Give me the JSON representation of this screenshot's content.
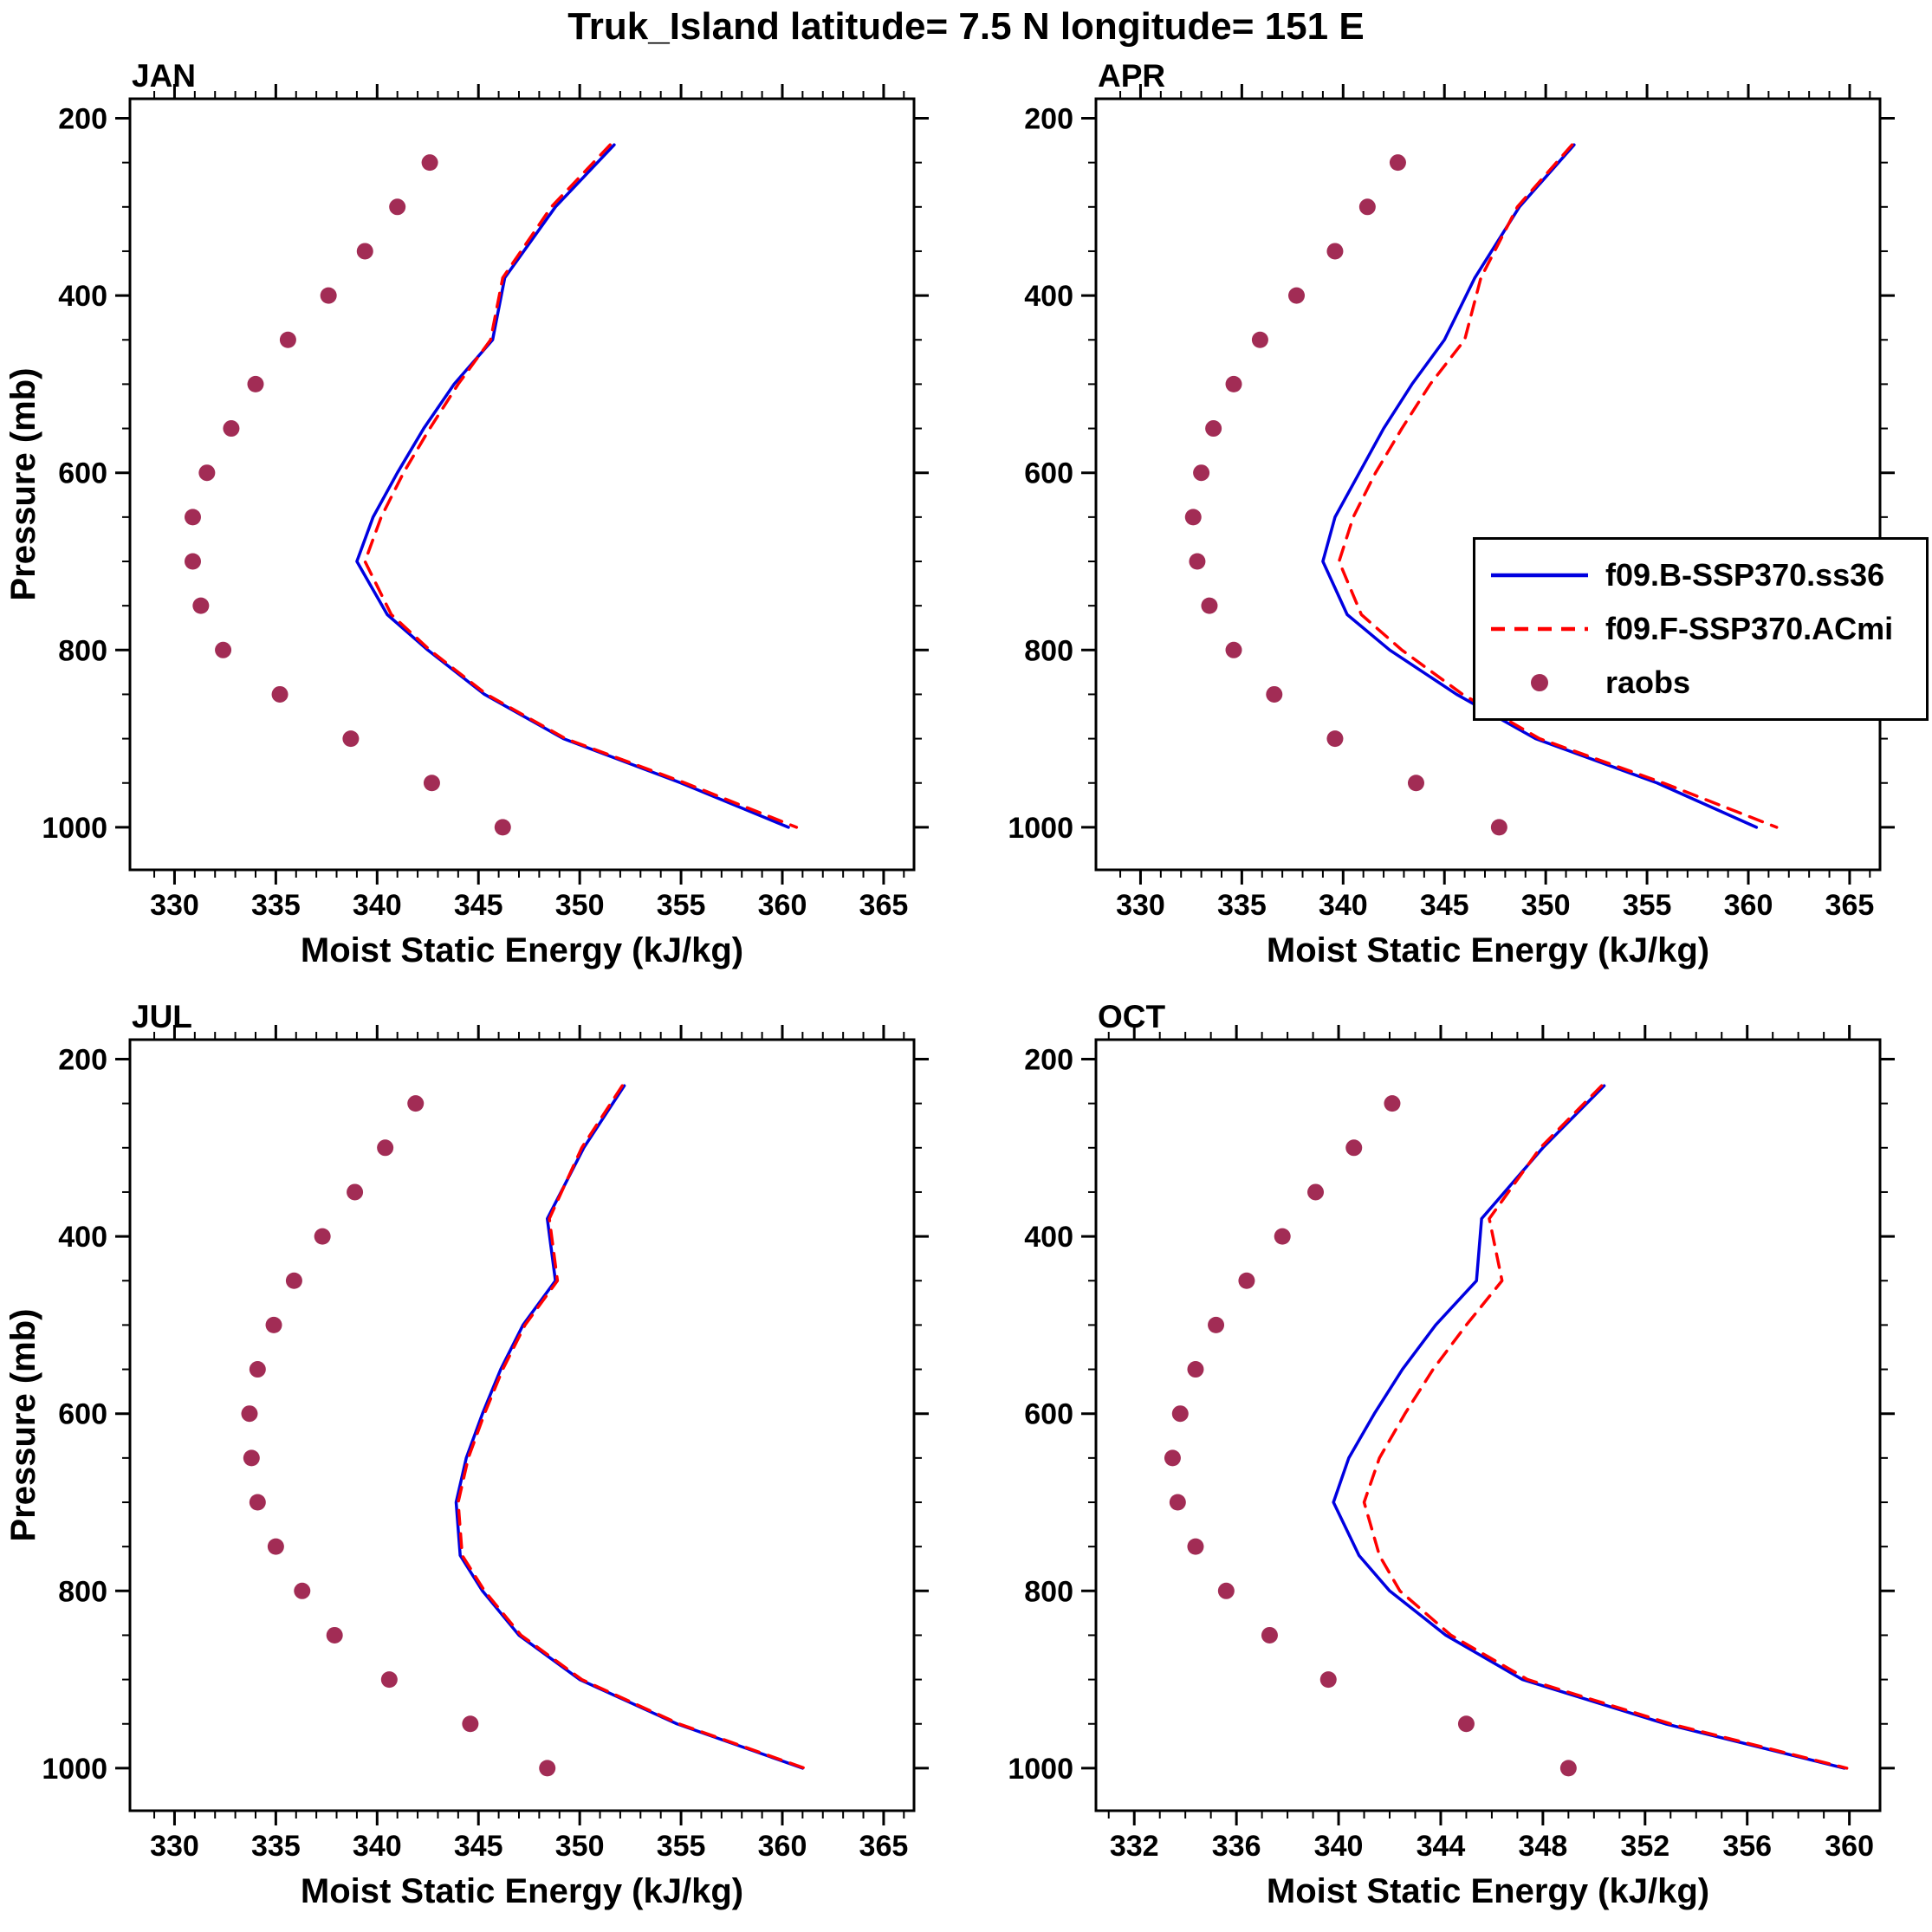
{
  "title": "Truk_Island  latitude= 7.5 N longitude= 151 E",
  "colors": {
    "model_b": "#0000E0",
    "model_f": "#FF0000",
    "raobs": "#A22C55",
    "axis": "#000000"
  },
  "axes": {
    "xlabel": "Moist Static Energy (kJ/kg)",
    "ylabel": "Pressure (mb)"
  },
  "legend": {
    "items": [
      {
        "label": "f09.B-SSP370.ss36",
        "marker": "line-solid",
        "color": "#0000E0"
      },
      {
        "label": "f09.F-SSP370.ACmi",
        "marker": "line-dashed",
        "color": "#FF0000"
      },
      {
        "label": "raobs",
        "marker": "dot",
        "color": "#A22C55"
      }
    ]
  },
  "chart_data": [
    {
      "type": "line",
      "label": "JAN",
      "xlabel": "Moist Static Energy (kJ/kg)",
      "ylabel": "Pressure (mb)",
      "show_ylabel": true,
      "xlim": [
        327.8,
        366.5
      ],
      "xticks": [
        330,
        335,
        340,
        345,
        350,
        355,
        360,
        365
      ],
      "x_minor_step": 1,
      "ylim": [
        178,
        1048
      ],
      "yticks": [
        200,
        400,
        600,
        800,
        1000
      ],
      "y_minor_step": 50,
      "pressure_levels": [
        230,
        300,
        380,
        450,
        500,
        550,
        600,
        650,
        700,
        760,
        800,
        850,
        900,
        950,
        1000
      ],
      "series": [
        {
          "name": "f09.B-SSP370.ss36",
          "style": "solid",
          "color": "#0000E0",
          "values": [
            351.7,
            348.8,
            346.3,
            345.7,
            343.8,
            342.3,
            341.0,
            339.8,
            339.0,
            340.5,
            342.5,
            345.3,
            349.2,
            355.0,
            360.3
          ]
        },
        {
          "name": "f09.F-SSP370.ACmi",
          "style": "dashed",
          "color": "#FF0000",
          "values": [
            351.5,
            348.6,
            346.2,
            345.6,
            344.0,
            342.6,
            341.3,
            340.2,
            339.4,
            340.7,
            342.6,
            345.4,
            349.3,
            355.2,
            360.7
          ]
        }
      ],
      "raobs": {
        "name": "raobs",
        "color": "#A22C55",
        "pressure": [
          250,
          300,
          350,
          400,
          450,
          500,
          550,
          600,
          650,
          700,
          750,
          800,
          850,
          900,
          950,
          1000
        ],
        "values": [
          342.6,
          341.0,
          339.4,
          337.6,
          335.6,
          334.0,
          332.8,
          331.6,
          330.9,
          330.9,
          331.3,
          332.4,
          335.2,
          338.7,
          342.7,
          346.2
        ]
      }
    },
    {
      "type": "line",
      "label": "APR",
      "xlabel": "Moist Static Energy (kJ/kg)",
      "ylabel": "Pressure (mb)",
      "show_ylabel": false,
      "xlim": [
        327.8,
        366.5
      ],
      "xticks": [
        330,
        335,
        340,
        345,
        350,
        355,
        360,
        365
      ],
      "x_minor_step": 1,
      "ylim": [
        178,
        1048
      ],
      "yticks": [
        200,
        400,
        600,
        800,
        1000
      ],
      "y_minor_step": 50,
      "pressure_levels": [
        230,
        300,
        380,
        450,
        500,
        550,
        600,
        650,
        700,
        760,
        800,
        850,
        900,
        950,
        1000
      ],
      "series": [
        {
          "name": "f09.B-SSP370.ss36",
          "style": "solid",
          "color": "#0000E0",
          "values": [
            351.4,
            348.7,
            346.5,
            345.0,
            343.4,
            342.0,
            340.8,
            339.6,
            339.0,
            340.2,
            342.3,
            345.6,
            349.5,
            355.5,
            360.4
          ]
        },
        {
          "name": "f09.F-SSP370.ACmi",
          "style": "dashed",
          "color": "#FF0000",
          "values": [
            351.3,
            348.6,
            346.8,
            346.0,
            344.3,
            342.9,
            341.6,
            340.5,
            339.8,
            340.9,
            342.9,
            345.9,
            349.7,
            355.8,
            361.4
          ]
        }
      ],
      "raobs": {
        "name": "raobs",
        "color": "#A22C55",
        "pressure": [
          250,
          300,
          350,
          400,
          450,
          500,
          550,
          600,
          650,
          700,
          750,
          800,
          850,
          900,
          950,
          1000
        ],
        "values": [
          342.7,
          341.2,
          339.6,
          337.7,
          335.9,
          334.6,
          333.6,
          333.0,
          332.6,
          332.8,
          333.4,
          334.6,
          336.6,
          339.6,
          343.6,
          347.7
        ]
      }
    },
    {
      "type": "line",
      "label": "JUL",
      "xlabel": "Moist Static Energy (kJ/kg)",
      "ylabel": "Pressure (mb)",
      "show_ylabel": true,
      "xlim": [
        327.8,
        366.5
      ],
      "xticks": [
        330,
        335,
        340,
        345,
        350,
        355,
        360,
        365
      ],
      "x_minor_step": 1,
      "ylim": [
        178,
        1048
      ],
      "yticks": [
        200,
        400,
        600,
        800,
        1000
      ],
      "y_minor_step": 50,
      "pressure_levels": [
        230,
        300,
        380,
        450,
        500,
        550,
        600,
        650,
        700,
        760,
        800,
        850,
        900,
        950,
        1000
      ],
      "series": [
        {
          "name": "f09.B-SSP370.ss36",
          "style": "solid",
          "color": "#0000E0",
          "values": [
            352.2,
            350.2,
            348.4,
            348.8,
            347.2,
            346.1,
            345.2,
            344.4,
            343.9,
            344.1,
            345.2,
            347.0,
            350.0,
            354.8,
            361.0
          ]
        },
        {
          "name": "f09.F-SSP370.ACmi",
          "style": "dashed",
          "color": "#FF0000",
          "values": [
            352.1,
            350.1,
            348.5,
            348.9,
            347.3,
            346.2,
            345.3,
            344.5,
            344.0,
            344.2,
            345.3,
            347.1,
            350.1,
            354.9,
            361.1
          ]
        }
      ],
      "raobs": {
        "name": "raobs",
        "color": "#A22C55",
        "pressure": [
          250,
          300,
          350,
          400,
          450,
          500,
          550,
          600,
          650,
          700,
          750,
          800,
          850,
          900,
          950,
          1000
        ],
        "values": [
          341.9,
          340.4,
          338.9,
          337.3,
          335.9,
          334.9,
          334.1,
          333.7,
          333.8,
          334.1,
          335.0,
          336.3,
          337.9,
          340.6,
          344.6,
          348.4
        ]
      }
    },
    {
      "type": "line",
      "label": "OCT",
      "xlabel": "Moist Static Energy (kJ/kg)",
      "ylabel": "Pressure (mb)",
      "show_ylabel": false,
      "xlim": [
        330.5,
        361.2
      ],
      "xticks": [
        332,
        336,
        340,
        344,
        348,
        352,
        356,
        360
      ],
      "x_minor_step": 1,
      "ylim": [
        178,
        1048
      ],
      "yticks": [
        200,
        400,
        600,
        800,
        1000
      ],
      "y_minor_step": 50,
      "pressure_levels": [
        230,
        300,
        380,
        450,
        500,
        550,
        600,
        650,
        700,
        760,
        800,
        850,
        900,
        950,
        1000
      ],
      "series": [
        {
          "name": "f09.B-SSP370.ss36",
          "style": "solid",
          "color": "#0000E0",
          "values": [
            350.4,
            348.0,
            345.6,
            345.4,
            343.8,
            342.5,
            341.4,
            340.4,
            339.8,
            340.8,
            342.0,
            344.2,
            347.2,
            352.8,
            359.8
          ]
        },
        {
          "name": "f09.F-SSP370.ACmi",
          "style": "dashed",
          "color": "#FF0000",
          "values": [
            350.3,
            347.9,
            345.9,
            346.4,
            345.0,
            343.7,
            342.6,
            341.6,
            341.0,
            341.6,
            342.4,
            344.4,
            347.4,
            353.0,
            359.9
          ]
        }
      ],
      "raobs": {
        "name": "raobs",
        "color": "#A22C55",
        "pressure": [
          250,
          300,
          350,
          400,
          450,
          500,
          550,
          600,
          650,
          700,
          750,
          800,
          850,
          900,
          950,
          1000
        ],
        "values": [
          342.1,
          340.6,
          339.1,
          337.8,
          336.4,
          335.2,
          334.4,
          333.8,
          333.5,
          333.7,
          334.4,
          335.6,
          337.3,
          339.6,
          345.0,
          349.0
        ]
      }
    }
  ]
}
